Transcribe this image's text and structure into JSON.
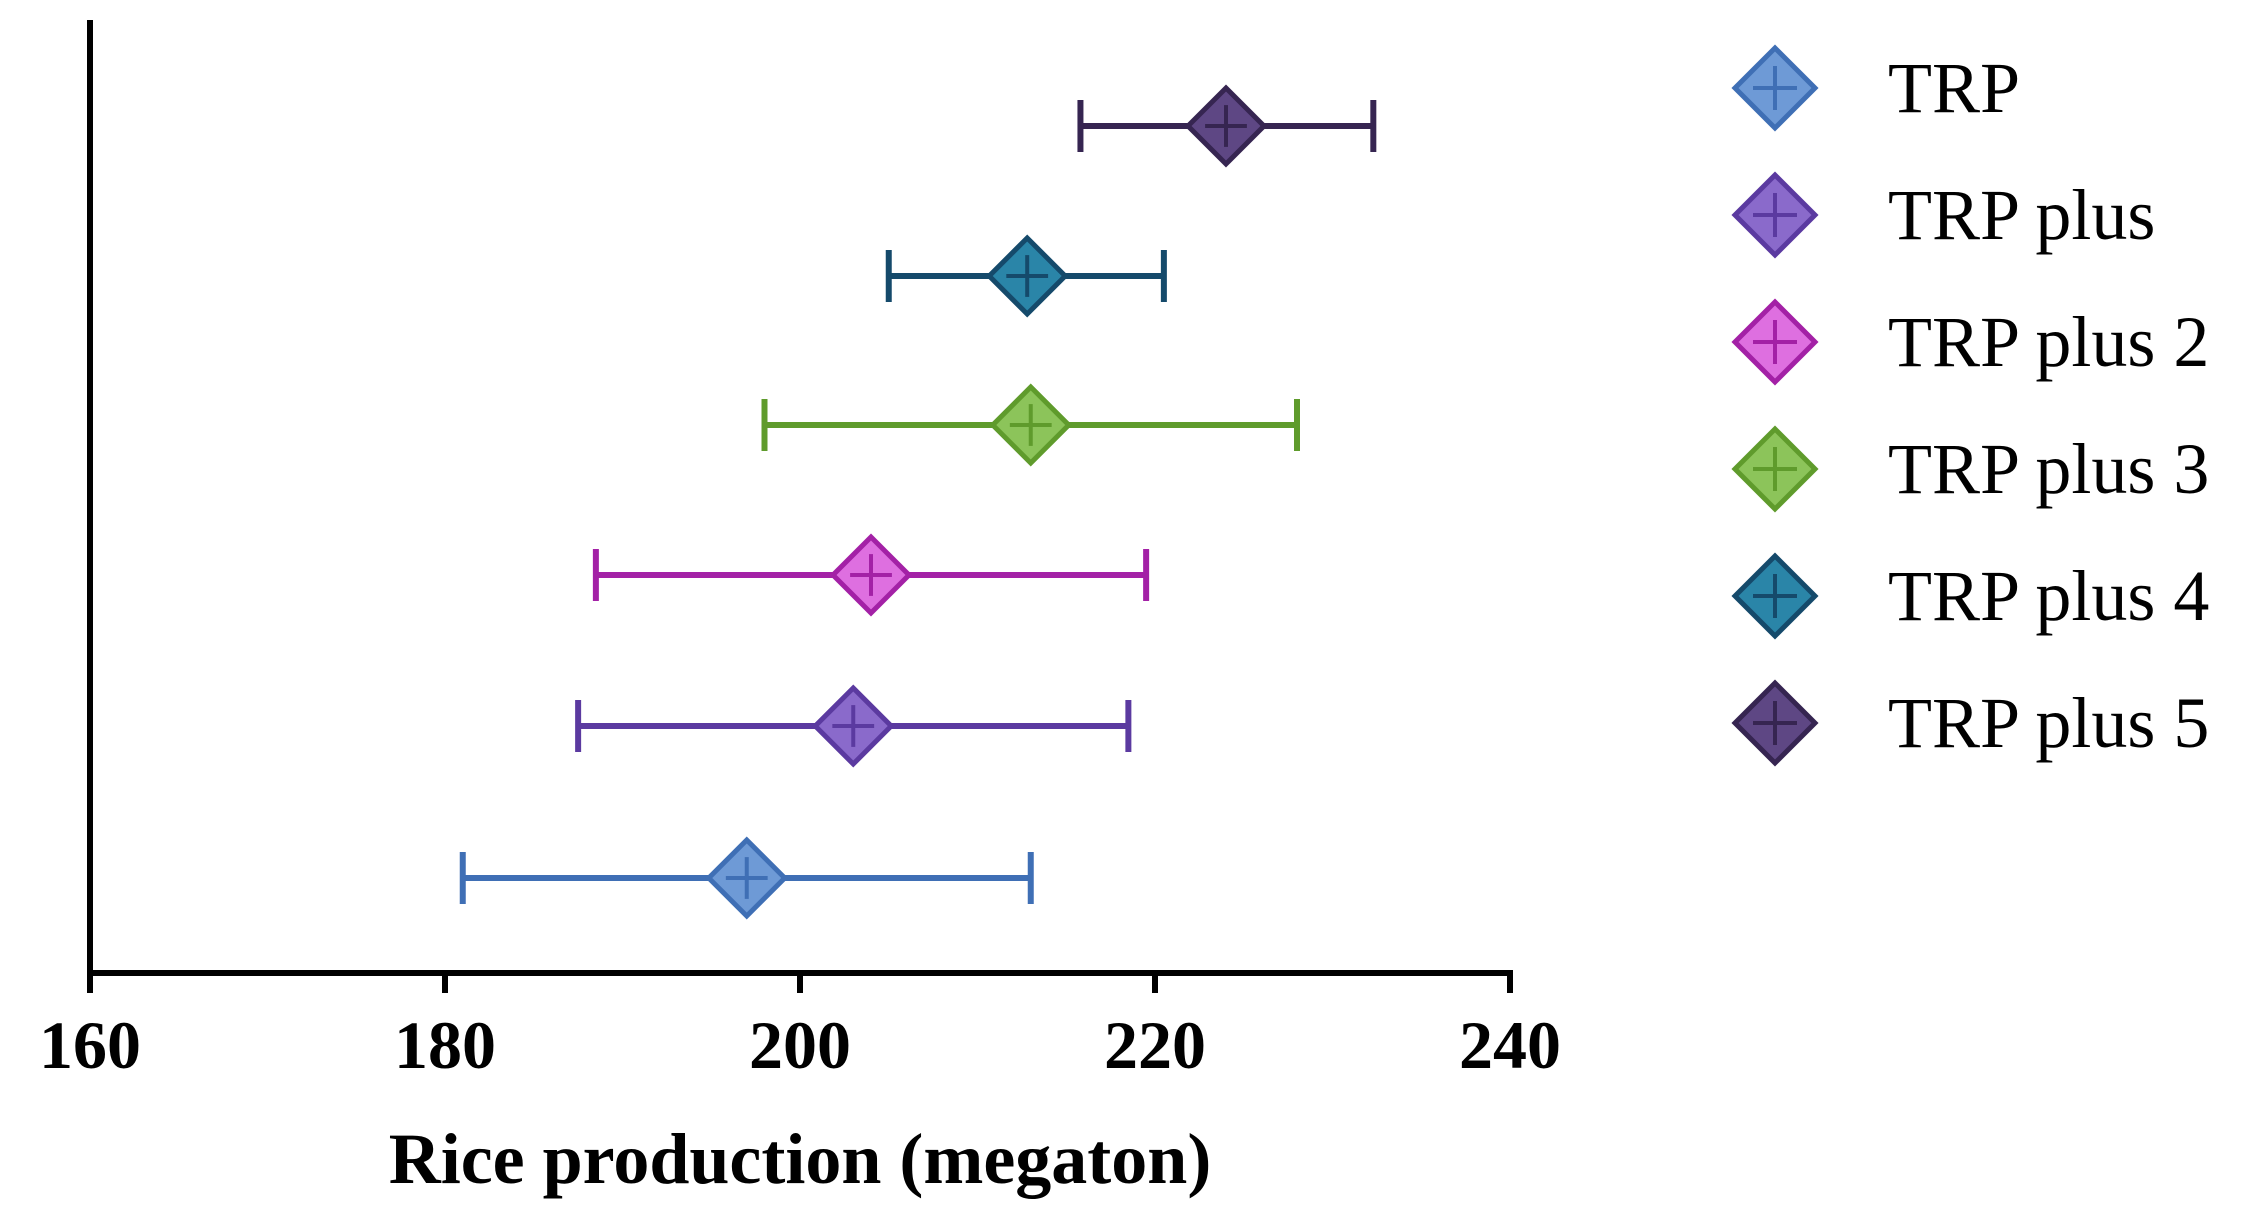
{
  "chart_data": {
    "type": "forest",
    "title": "",
    "xlabel": "Rice production (megaton)",
    "ylabel": "",
    "xlim": [
      160,
      240
    ],
    "xticks": [
      160,
      180,
      200,
      220,
      240
    ],
    "xtick_labels": [
      "160",
      "180",
      "200",
      "220",
      "240"
    ],
    "grid": false,
    "legend_position": "right",
    "marker": "diamond-with-cross",
    "series": [
      {
        "name": "TRP",
        "mean": 197,
        "lower": 181,
        "upper": 213,
        "color": "#3f6fb5",
        "fill": "#6e9ad6"
      },
      {
        "name": "TRP plus",
        "mean": 203,
        "lower": 187.5,
        "upper": 218.5,
        "color": "#5b3aa0",
        "fill": "#8a6acb"
      },
      {
        "name": "TRP plus 2",
        "mean": 204,
        "lower": 188.5,
        "upper": 219.5,
        "color": "#a321a6",
        "fill": "#de6fe0"
      },
      {
        "name": "TRP plus 3",
        "mean": 213,
        "lower": 198,
        "upper": 228,
        "color": "#5f9b2c",
        "fill": "#8cc45a"
      },
      {
        "name": "TRP plus 4",
        "mean": 212.8,
        "lower": 205,
        "upper": 220.5,
        "color": "#154a6b",
        "fill": "#2a85a8"
      },
      {
        "name": "TRP plus 5",
        "mean": 224,
        "lower": 215.8,
        "upper": 232.3,
        "color": "#362551",
        "fill": "#5e4784"
      }
    ]
  }
}
